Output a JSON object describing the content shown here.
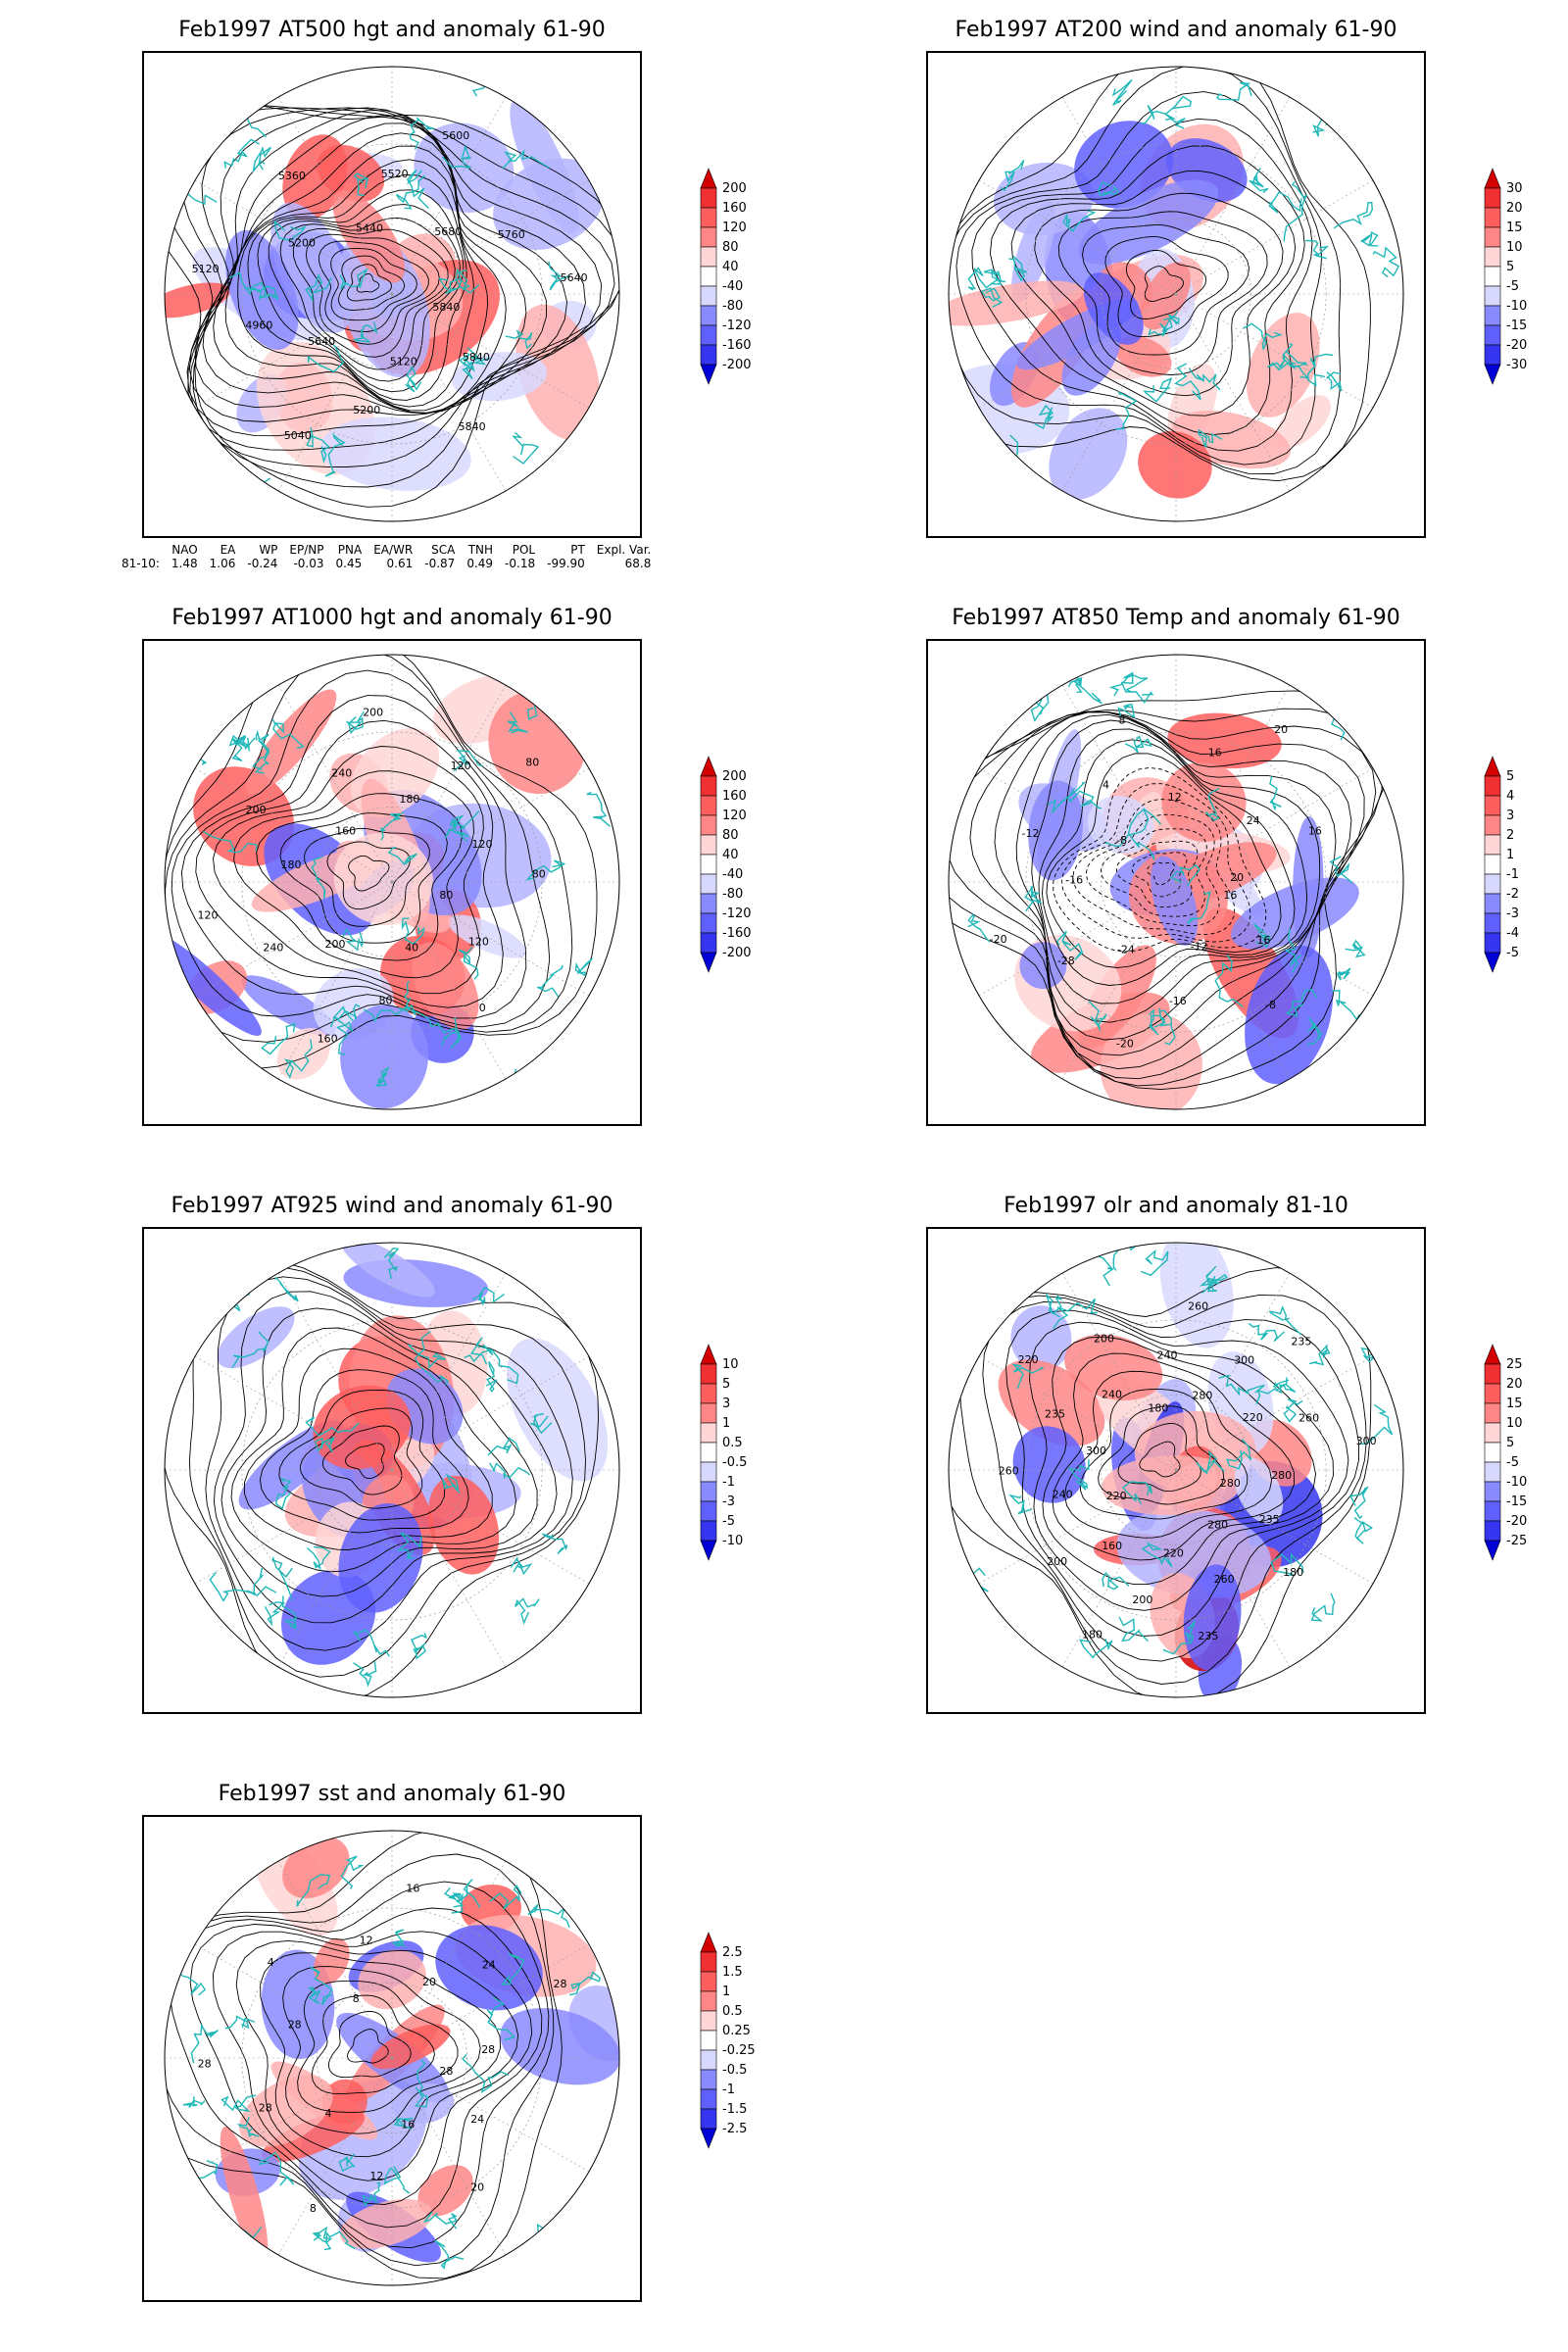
{
  "colors": {
    "red_scale": [
      "#ffd6d6",
      "#ffb0b0",
      "#ff8787",
      "#ff5e5e",
      "#f03030",
      "#d40000"
    ],
    "blue_scale": [
      "#d8d8ff",
      "#b4b4ff",
      "#8a8aff",
      "#6060ff",
      "#3535f0",
      "#0000d6"
    ],
    "coast": "#20b8b8",
    "contour": "#000000",
    "frame": "#000000"
  },
  "panels": [
    {
      "id": "p1",
      "title": "Feb1997 AT500 hgt and anomaly 61-90",
      "colorbar_labels": [
        "200",
        "160",
        "120",
        "80",
        "40",
        "-40",
        "-80",
        "-120",
        "-160",
        "-200"
      ],
      "contour_labels": [
        "5840",
        "5840",
        "5840",
        "5120",
        "5200",
        "5040",
        "5640",
        "4960",
        "5120",
        "5200",
        "5360",
        "5440",
        "5520",
        "5600",
        "5680",
        "5760",
        "5640"
      ]
    },
    {
      "id": "p2",
      "title": "Feb1997 AT200 wind and anomaly 61-90",
      "colorbar_labels": [
        "30",
        "20",
        "15",
        "10",
        "5",
        "-5",
        "-10",
        "-15",
        "-20",
        "-30"
      ],
      "contour_labels": []
    },
    {
      "id": "p3",
      "title": "Feb1997 AT1000 hgt and anomaly 61-90",
      "colorbar_labels": [
        "200",
        "160",
        "120",
        "80",
        "40",
        "-40",
        "-80",
        "-120",
        "-160",
        "-200"
      ],
      "contour_labels": [
        "80",
        "120",
        "0",
        "40",
        "80",
        "160",
        "200",
        "240",
        "120",
        "180",
        "200",
        "160",
        "240",
        "200",
        "180",
        "120",
        "80",
        "120",
        "80"
      ]
    },
    {
      "id": "p4",
      "title": "Feb1997 AT850 Temp and anomaly 61-90",
      "colorbar_labels": [
        "5",
        "4",
        "3",
        "2",
        "1",
        "-1",
        "-2",
        "-3",
        "-4",
        "-5"
      ],
      "contour_labels": [
        "16",
        "16",
        "-8",
        "-12",
        "-16",
        "-20",
        "-24",
        "-28",
        "-20",
        "-16",
        "-12",
        "-8",
        "4",
        "8",
        "12",
        "16",
        "20",
        "24",
        "16",
        "20"
      ]
    },
    {
      "id": "p5",
      "title": "Feb1997 AT925 wind and anomaly 61-90",
      "colorbar_labels": [
        "10",
        "5",
        "3",
        "1",
        "0.5",
        "-0.5",
        "-1",
        "-3",
        "-5",
        "-10"
      ],
      "contour_labels": []
    },
    {
      "id": "p6",
      "title": "Feb1997 olr and anomaly 81-10",
      "colorbar_labels": [
        "25",
        "20",
        "15",
        "10",
        "5",
        "-5",
        "-10",
        "-15",
        "-20",
        "-25"
      ],
      "contour_labels": [
        "280",
        "235",
        "180",
        "280",
        "260",
        "235",
        "220",
        "200",
        "180",
        "160",
        "200",
        "220",
        "240",
        "260",
        "300",
        "235",
        "220",
        "240",
        "200",
        "180",
        "240",
        "260",
        "280",
        "300",
        "235",
        "220",
        "260",
        "300",
        "280"
      ]
    },
    {
      "id": "p7",
      "title": "Feb1997 sst and anomaly 61-90",
      "colorbar_labels": [
        "2.5",
        "1.5",
        "1",
        "0.5",
        "0.25",
        "-0.25",
        "-0.5",
        "-1",
        "-1.5",
        "-2.5"
      ],
      "contour_labels": [
        "28",
        "24",
        "20",
        "16",
        "12",
        "8",
        "4",
        "28",
        "28",
        "28",
        "4",
        "8",
        "12",
        "16",
        "20",
        "24",
        "28",
        "28"
      ]
    }
  ],
  "teleconnection": {
    "headers": [
      "",
      "NAO",
      "EA",
      "WP",
      "EP/NP",
      "PNA",
      "EA/WR",
      "SCA",
      "TNH",
      "POL",
      "PT",
      "Expl. Var."
    ],
    "row_label": "81-10:",
    "values": [
      "1.48",
      "1.06",
      "-0.24",
      "-0.03",
      "0.45",
      "0.61",
      "-0.87",
      "0.49",
      "-0.18",
      "-99.90",
      "68.8"
    ]
  }
}
